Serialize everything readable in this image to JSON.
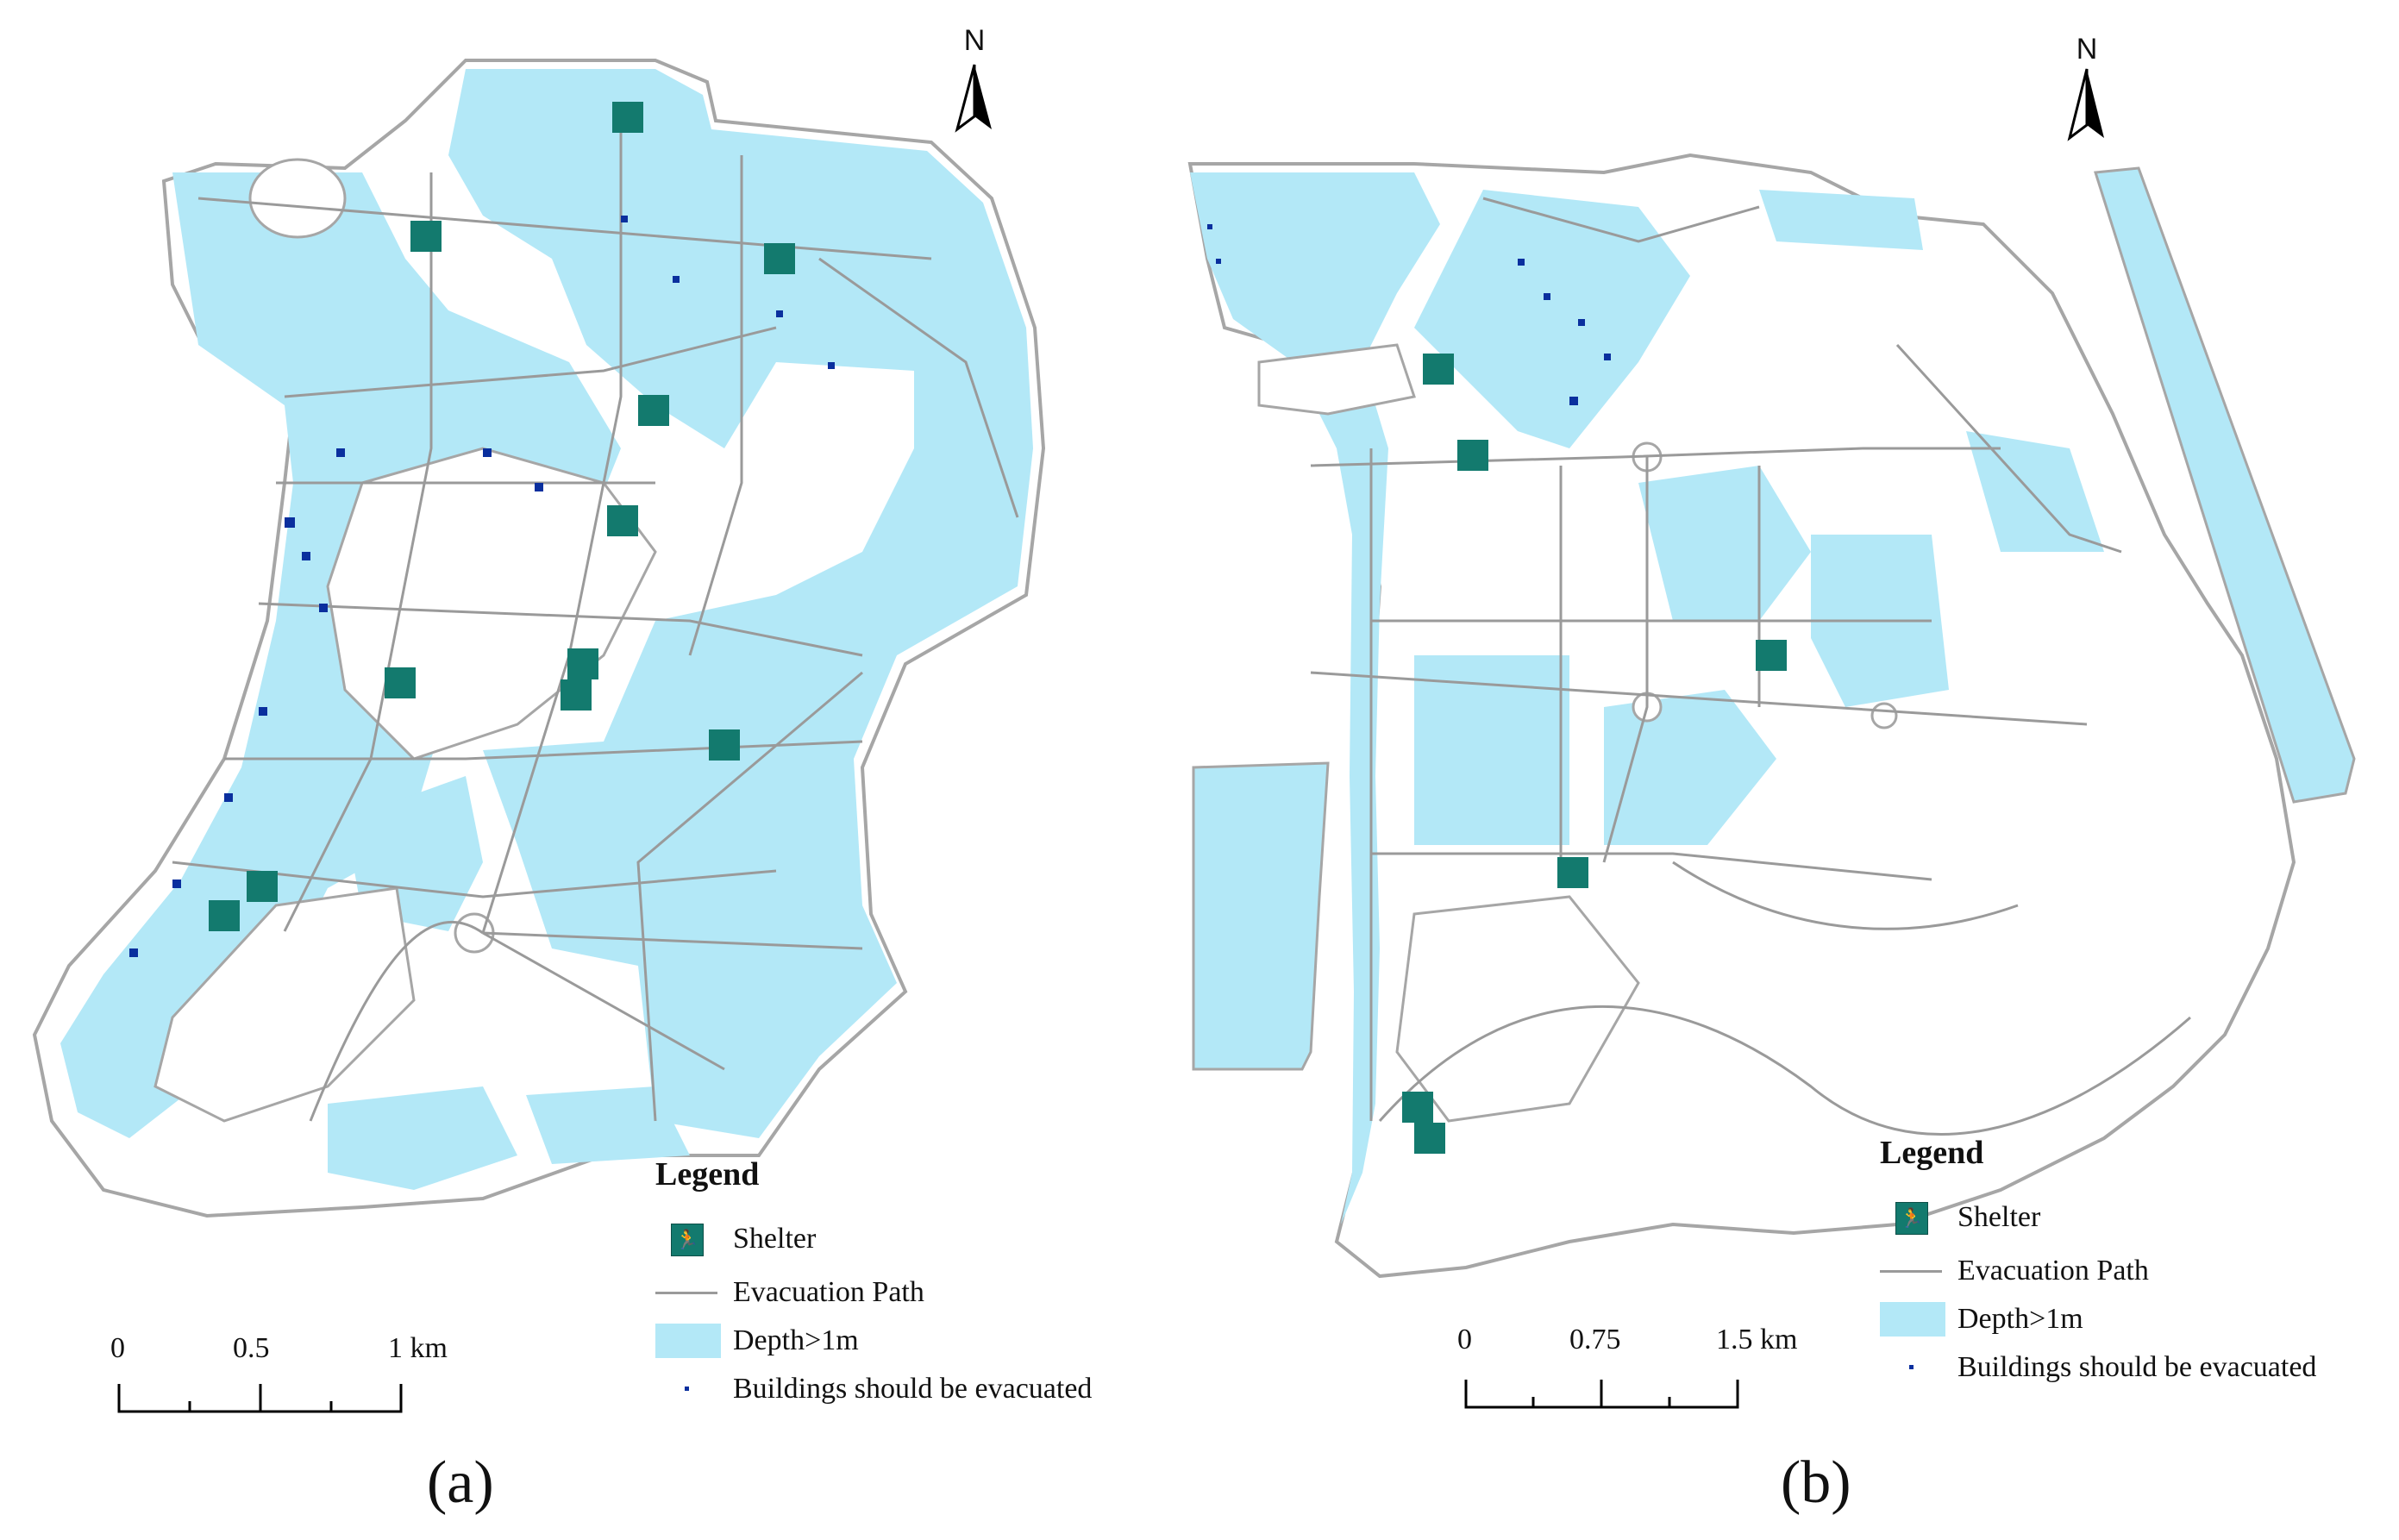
{
  "colors": {
    "flood": "#b3e8f7",
    "path": "#9a9a9a",
    "building": "#0a2f9e",
    "shelter": "#137a6e",
    "land_outline": "#a6a6a6"
  },
  "icons": {
    "shelter": "running-person-exit-icon",
    "north": "north-arrow-icon"
  },
  "panels": [
    {
      "caption": "(a)",
      "north_letter": "N",
      "legend": {
        "title": "Legend",
        "items": [
          {
            "symbol": "shelter",
            "label": "Shelter"
          },
          {
            "symbol": "path",
            "label": "Evacuation Path"
          },
          {
            "symbol": "depth",
            "label": "Depth>1m"
          },
          {
            "symbol": "building",
            "label": "Buildings should be evacuated"
          }
        ]
      },
      "scale": {
        "labels": [
          "0",
          "0.5",
          "1 km"
        ]
      }
    },
    {
      "caption": "(b)",
      "north_letter": "N",
      "legend": {
        "title": "Legend",
        "items": [
          {
            "symbol": "shelter",
            "label": "Shelter"
          },
          {
            "symbol": "path",
            "label": "Evacuation Path"
          },
          {
            "symbol": "depth",
            "label": "Depth>1m"
          },
          {
            "symbol": "building",
            "label": "Buildings should be evacuated"
          }
        ]
      },
      "scale": {
        "labels": [
          "0",
          "0.75",
          "1.5 km"
        ]
      }
    }
  ]
}
